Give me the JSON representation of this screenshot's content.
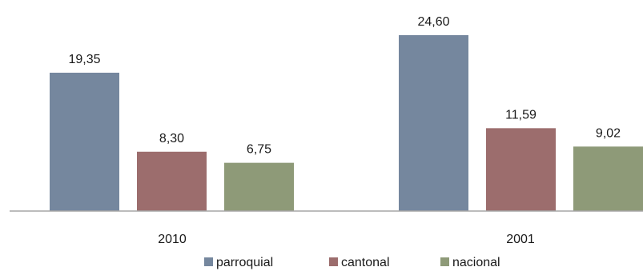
{
  "chart_data": {
    "type": "bar",
    "categories": [
      "2010",
      "2001"
    ],
    "series": [
      {
        "name": "parroquial",
        "values": [
          19.35,
          24.6
        ],
        "labels": [
          "19,35",
          "24,60"
        ],
        "color": "#75879e"
      },
      {
        "name": "cantonal",
        "values": [
          8.3,
          11.59
        ],
        "labels": [
          "8,30",
          "11,59"
        ],
        "color": "#9c6d6d"
      },
      {
        "name": "nacional",
        "values": [
          6.75,
          9.02
        ],
        "labels": [
          "6,75",
          "9,02"
        ],
        "color": "#8e9a78"
      }
    ],
    "ylim": [
      0,
      24.6
    ],
    "grid": false,
    "legend_position": "bottom",
    "axis_color": "#a6a6a6"
  }
}
